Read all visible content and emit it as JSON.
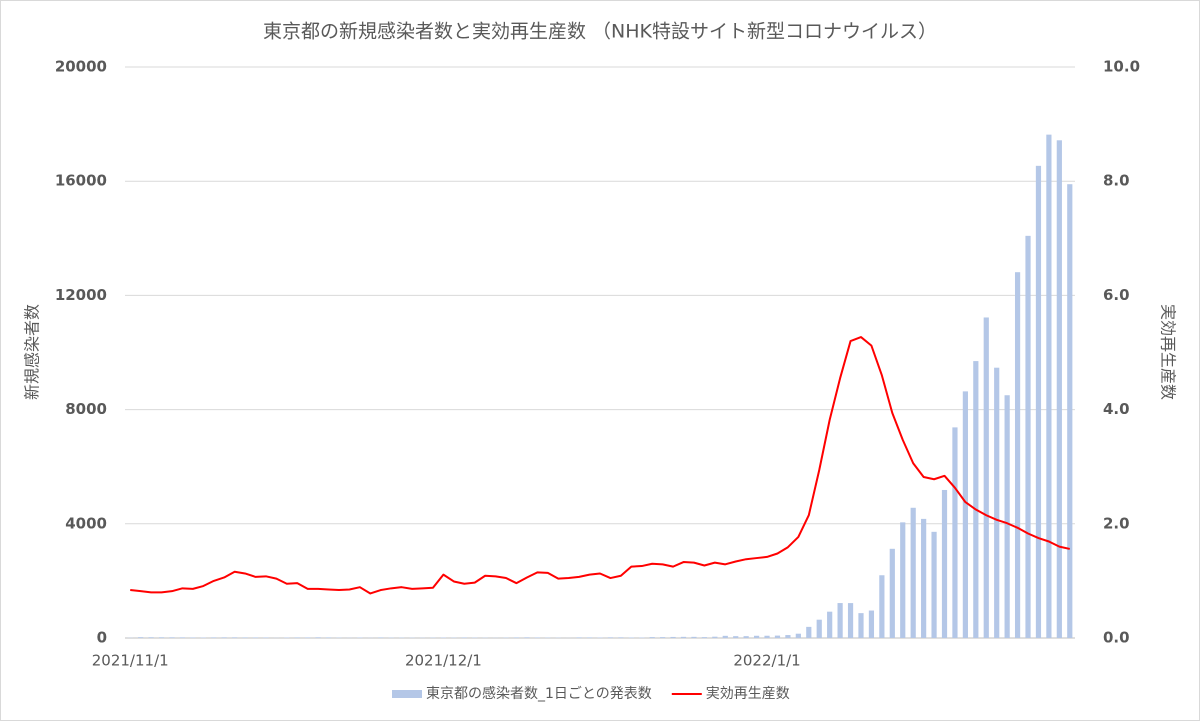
{
  "chart_data": {
    "type": "bar-line",
    "title": "東京都の新規感染者数と実効再生産数 （NHK特設サイト新型コロナウイルス）",
    "y_label": "新規感染者数",
    "y2_label": "実効再生産数",
    "categories": [
      "2021/11/1",
      null,
      null,
      null,
      null,
      null,
      null,
      null,
      null,
      null,
      null,
      null,
      null,
      null,
      null,
      null,
      null,
      null,
      null,
      null,
      null,
      null,
      null,
      null,
      null,
      null,
      null,
      null,
      null,
      null,
      "2021/12/1",
      null,
      null,
      null,
      null,
      null,
      null,
      null,
      null,
      null,
      null,
      null,
      null,
      null,
      null,
      null,
      null,
      null,
      null,
      null,
      null,
      null,
      null,
      null,
      null,
      null,
      null,
      null,
      null,
      null,
      null,
      "2022/1/1",
      null,
      null,
      null,
      null,
      null,
      null,
      null,
      null,
      null,
      null,
      null,
      null,
      null,
      null,
      null,
      null,
      null,
      null,
      null,
      null,
      null,
      null,
      null,
      null,
      null,
      null,
      null,
      null,
      null
    ],
    "series": [
      {
        "name": "東京都の感染者数_1日ごとの発表数",
        "type": "bar",
        "color": "#b4c7e7",
        "values": [
          9,
          29,
          27,
          26,
          25,
          23,
          19,
          17,
          22,
          24,
          24,
          21,
          20,
          19,
          6,
          16,
          21,
          20,
          25,
          21,
          14,
          8,
          16,
          8,
          21,
          13,
          13,
          12,
          9,
          14,
          16,
          13,
          20,
          15,
          12,
          7,
          13,
          21,
          24,
          19,
          14,
          11,
          4,
          22,
          21,
          16,
          24,
          24,
          18,
          17,
          32,
          31,
          37,
          40,
          40,
          31,
          46,
          76,
          64,
          64,
          78,
          79,
          84,
          103,
          151,
          390,
          641,
          922,
          1224,
          1223,
          871,
          962,
          2198,
          3124,
          4051,
          4561,
          4172,
          3719,
          5185,
          7377,
          8638,
          9699,
          11227,
          9468,
          8503,
          12813,
          14086,
          16538,
          17631,
          17433,
          15895
        ]
      },
      {
        "name": "実効再生産数",
        "type": "line",
        "color": "#ff0000",
        "axis": "y2",
        "values": [
          0.84,
          0.82,
          0.8,
          0.8,
          0.82,
          0.87,
          0.86,
          0.91,
          1.0,
          1.06,
          1.16,
          1.13,
          1.07,
          1.08,
          1.04,
          0.95,
          0.96,
          0.86,
          0.86,
          0.85,
          0.84,
          0.85,
          0.89,
          0.78,
          0.84,
          0.87,
          0.89,
          0.86,
          0.87,
          0.88,
          1.11,
          0.99,
          0.95,
          0.97,
          1.09,
          1.08,
          1.05,
          0.96,
          1.06,
          1.15,
          1.14,
          1.04,
          1.05,
          1.07,
          1.11,
          1.13,
          1.05,
          1.09,
          1.25,
          1.26,
          1.3,
          1.29,
          1.25,
          1.33,
          1.32,
          1.27,
          1.32,
          1.29,
          1.34,
          1.38,
          1.4,
          1.42,
          1.48,
          1.59,
          1.77,
          2.15,
          2.94,
          3.82,
          4.55,
          5.2,
          5.27,
          5.12,
          4.6,
          3.94,
          3.47,
          3.06,
          2.82,
          2.78,
          2.84,
          2.63,
          2.38,
          2.25,
          2.15,
          2.07,
          2.01,
          1.93,
          1.83,
          1.75,
          1.69,
          1.6,
          1.56
        ]
      }
    ],
    "ylim": [
      0,
      20000
    ],
    "yticks": [
      0,
      4000,
      8000,
      12000,
      16000,
      20000
    ],
    "y2lim": [
      0,
      10
    ],
    "y2ticks": [
      {
        "value": 0,
        "label": "0.0"
      },
      {
        "value": 2,
        "label": "2.0"
      },
      {
        "value": 4,
        "label": "4.0"
      },
      {
        "value": 6,
        "label": "6.0"
      },
      {
        "value": 8,
        "label": "8.0"
      },
      {
        "value": 10,
        "label": "10.0"
      }
    ],
    "grid": true,
    "legend": "bottom"
  }
}
